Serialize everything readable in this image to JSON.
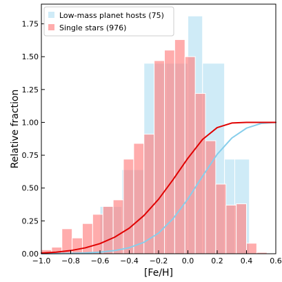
{
  "chart_data": {
    "type": "bar",
    "title": "",
    "xlabel": "[Fe/H]",
    "ylabel": "Relative fraction",
    "xlim": [
      -1.0,
      0.6
    ],
    "ylim": [
      0.0,
      1.9
    ],
    "x_ticks": [
      "−1.0",
      "−0.8",
      "−0.6",
      "−0.4",
      "−0.2",
      "0.0",
      "0.2",
      "0.4",
      "0.6"
    ],
    "x_tick_values": [
      -1.0,
      -0.8,
      -0.6,
      -0.4,
      -0.2,
      0.0,
      0.2,
      0.4,
      0.6
    ],
    "y_ticks": [
      "0.00",
      "0.25",
      "0.50",
      "0.75",
      "1.00",
      "1.25",
      "1.50",
      "1.75"
    ],
    "y_tick_values": [
      0.0,
      0.25,
      0.5,
      0.75,
      1.0,
      1.25,
      1.5,
      1.75
    ],
    "grid": false,
    "legend_position": "top-left",
    "series": [
      {
        "name": "Low-mass planet hosts (75)",
        "kind": "histogram",
        "color": "#87ceeb",
        "bins": [
          {
            "x0": -0.6,
            "x1": -0.45,
            "value": 0.36
          },
          {
            "x0": -0.45,
            "x1": -0.3,
            "value": 0.64
          },
          {
            "x0": -0.3,
            "x1": -0.15,
            "value": 1.45
          },
          {
            "x0": -0.15,
            "x1": 0.0,
            "value": 1.45
          },
          {
            "x0": 0.0,
            "x1": 0.1,
            "value": 1.81
          },
          {
            "x0": 0.1,
            "x1": 0.25,
            "value": 1.45
          },
          {
            "x0": 0.25,
            "x1": 0.32,
            "value": 0.72
          },
          {
            "x0": 0.32,
            "x1": 0.42,
            "value": 0.72
          }
        ]
      },
      {
        "name": "Single stars (976)",
        "kind": "histogram",
        "color": "#ff7f7f",
        "bins": [
          {
            "x0": -1.0,
            "x1": -0.93,
            "value": 0.03
          },
          {
            "x0": -0.93,
            "x1": -0.86,
            "value": 0.05
          },
          {
            "x0": -0.86,
            "x1": -0.79,
            "value": 0.19
          },
          {
            "x0": -0.79,
            "x1": -0.72,
            "value": 0.12
          },
          {
            "x0": -0.72,
            "x1": -0.65,
            "value": 0.23
          },
          {
            "x0": -0.65,
            "x1": -0.58,
            "value": 0.3
          },
          {
            "x0": -0.58,
            "x1": -0.51,
            "value": 0.36
          },
          {
            "x0": -0.51,
            "x1": -0.44,
            "value": 0.41
          },
          {
            "x0": -0.44,
            "x1": -0.37,
            "value": 0.72
          },
          {
            "x0": -0.37,
            "x1": -0.3,
            "value": 0.84
          },
          {
            "x0": -0.3,
            "x1": -0.23,
            "value": 0.91
          },
          {
            "x0": -0.23,
            "x1": -0.16,
            "value": 1.47
          },
          {
            "x0": -0.16,
            "x1": -0.09,
            "value": 1.55
          },
          {
            "x0": -0.09,
            "x1": -0.02,
            "value": 1.63
          },
          {
            "x0": -0.02,
            "x1": 0.05,
            "value": 1.5
          },
          {
            "x0": 0.05,
            "x1": 0.12,
            "value": 1.22
          },
          {
            "x0": 0.12,
            "x1": 0.19,
            "value": 0.86
          },
          {
            "x0": 0.19,
            "x1": 0.26,
            "value": 0.53
          },
          {
            "x0": 0.26,
            "x1": 0.33,
            "value": 0.37
          },
          {
            "x0": 0.33,
            "x1": 0.4,
            "value": 0.38
          },
          {
            "x0": 0.4,
            "x1": 0.47,
            "value": 0.08
          },
          {
            "x0": 0.47,
            "x1": 0.54,
            "value": 0.01
          }
        ]
      },
      {
        "kind": "line",
        "color": "#87ceeb",
        "x": [
          -1.0,
          -0.9,
          -0.8,
          -0.7,
          -0.6,
          -0.5,
          -0.4,
          -0.3,
          -0.2,
          -0.1,
          0.0,
          0.1,
          0.2,
          0.3,
          0.4,
          0.5,
          0.6
        ],
        "y": [
          0.0,
          0.001,
          0.003,
          0.006,
          0.012,
          0.024,
          0.046,
          0.087,
          0.157,
          0.268,
          0.417,
          0.59,
          0.757,
          0.881,
          0.956,
          0.992,
          1.0
        ]
      },
      {
        "kind": "line",
        "color": "#e00000",
        "x": [
          -1.0,
          -0.9,
          -0.8,
          -0.7,
          -0.6,
          -0.5,
          -0.4,
          -0.3,
          -0.2,
          -0.1,
          0.0,
          0.1,
          0.2,
          0.3,
          0.4,
          0.5,
          0.6
        ],
        "y": [
          0.005,
          0.012,
          0.024,
          0.045,
          0.077,
          0.126,
          0.195,
          0.291,
          0.415,
          0.566,
          0.727,
          0.87,
          0.96,
          0.995,
          1.0,
          1.0,
          1.0
        ]
      }
    ]
  }
}
